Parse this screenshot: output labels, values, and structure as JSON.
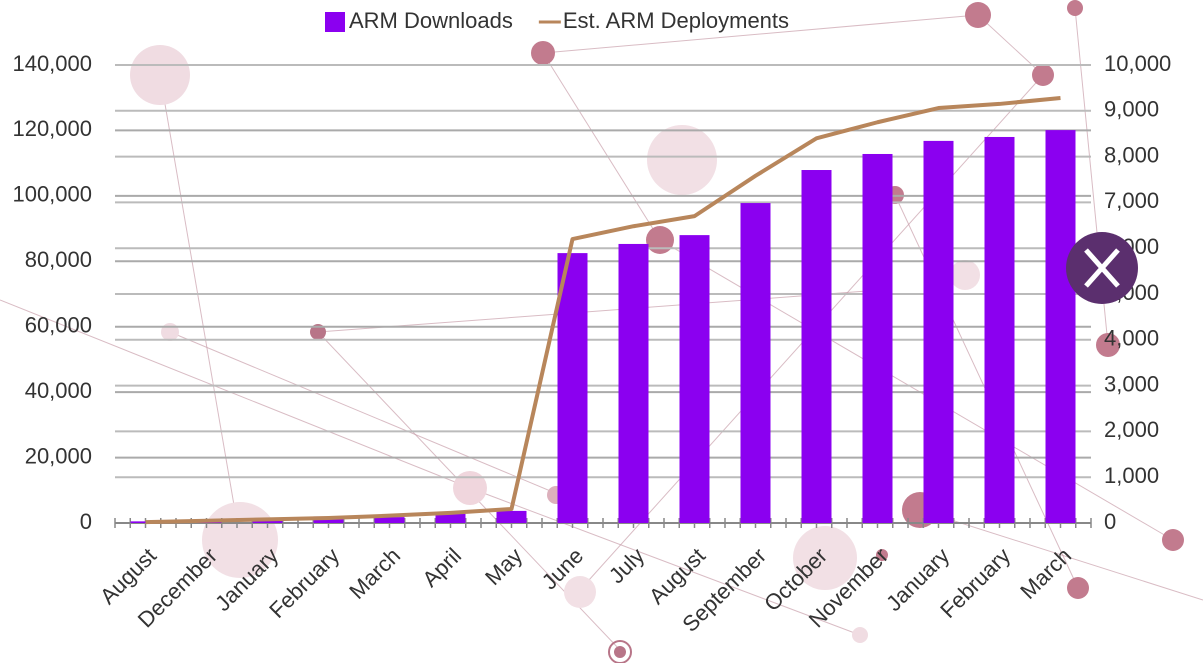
{
  "chart_data": {
    "type": "bar",
    "categories": [
      "August",
      "December",
      "January",
      "February",
      "March",
      "April",
      "May",
      "June",
      "July",
      "August",
      "September",
      "October",
      "November",
      "January",
      "February",
      "March"
    ],
    "series": [
      {
        "name": "ARM Downloads",
        "type": "bar",
        "color": "#8b00f0",
        "values": [
          500,
          1000,
          1500,
          2000,
          1800,
          2800,
          3700,
          82500,
          85300,
          88000,
          97800,
          107900,
          112800,
          116800,
          118000,
          120100
        ]
      },
      {
        "name": "Est. ARM Deployments",
        "type": "line",
        "axis": "y2",
        "color": "#b8865b",
        "values": [
          20,
          50,
          80,
          110,
          160,
          220,
          306,
          6200,
          6480,
          6700,
          7580,
          8400,
          8750,
          9060,
          9150,
          9280
        ]
      }
    ],
    "ylim": [
      0,
      140000
    ],
    "yticks": [
      0,
      {
        "value": 20000,
        "label": "20,000"
      },
      {
        "value": 40000,
        "label": "40,000"
      },
      {
        "value": 60000,
        "label": "60,000"
      },
      {
        "value": 80000,
        "label": "80,000"
      },
      {
        "value": 100000,
        "label": "100,000"
      },
      {
        "value": 120000,
        "label": "120,000"
      },
      {
        "value": 140000,
        "label": "140,000"
      }
    ],
    "y2lim": [
      0,
      10000
    ],
    "y2ticks": [
      0,
      {
        "value": 1000,
        "label": "1,000"
      },
      {
        "value": 2000,
        "label": "2,000"
      },
      {
        "value": 3000,
        "label": "3,000"
      },
      {
        "value": 4000,
        "label": "4,000"
      },
      {
        "value": 5000,
        "label": "5,000"
      },
      {
        "value": 6000,
        "label": "6,000"
      },
      {
        "value": 7000,
        "label": "7,000"
      },
      {
        "value": 8000,
        "label": "8,000"
      },
      {
        "value": 9000,
        "label": "9,000"
      },
      {
        "value": 10000,
        "label": "10,000"
      }
    ],
    "grid": true,
    "legend": "top"
  }
}
